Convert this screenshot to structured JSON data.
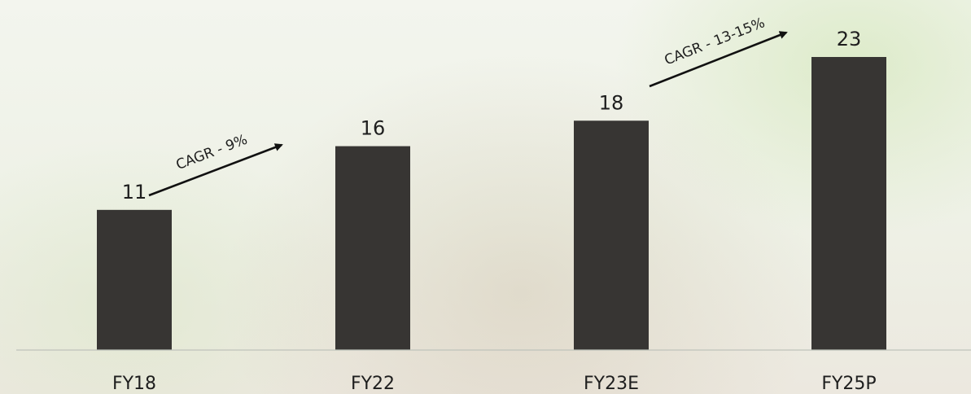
{
  "chart_data": {
    "type": "bar",
    "categories": [
      "FY18",
      "FY22",
      "FY23E",
      "FY25P"
    ],
    "values": [
      11,
      16,
      18,
      23
    ],
    "ylim": [
      0,
      23
    ],
    "grid": false,
    "legend": "none",
    "bar_color": "#373533",
    "axis_color": "#bfc3bb",
    "annotations": [
      {
        "text": "CAGR - 9%",
        "from_category": "FY18",
        "to_category": "FY22"
      },
      {
        "text": "CAGR - 13-15%",
        "from_category": "FY23E",
        "to_category": "FY25P"
      }
    ]
  }
}
